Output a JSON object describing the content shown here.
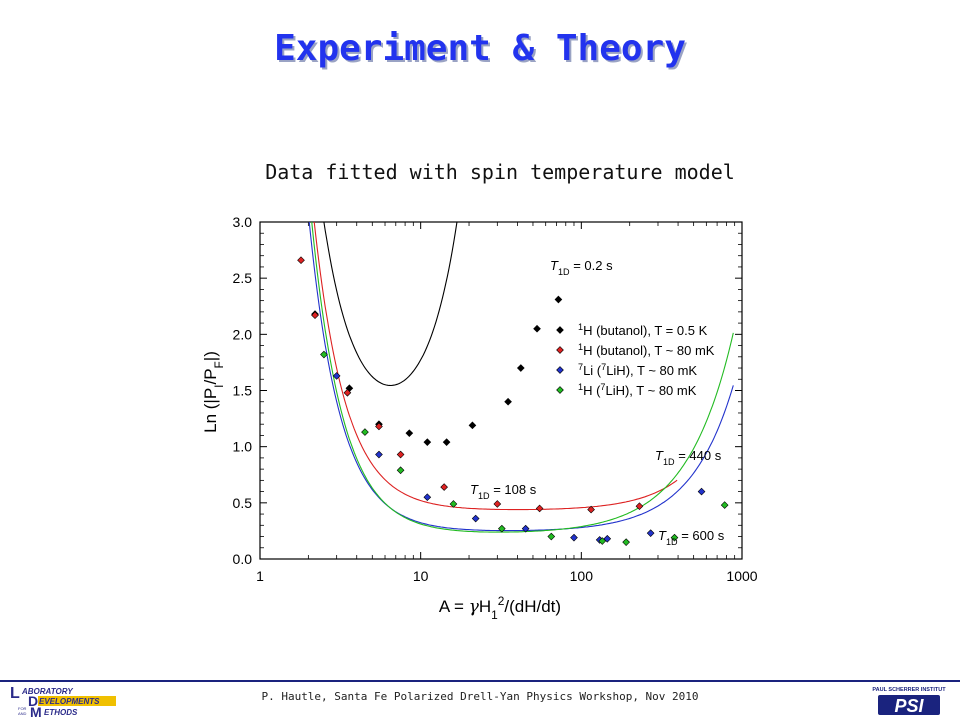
{
  "slide": {
    "title": "Experiment & Theory",
    "subtitle": "Data fitted with spin temperature model",
    "footer": "P. Hautle, Santa Fe Polarized Drell-Yan Physics Workshop, Nov 2010",
    "logo_left_text": [
      "ABORATORY",
      "EVELOPMENTS",
      "FOR",
      "AND",
      "ETHODS"
    ],
    "logo_left_initials": [
      "L",
      "D",
      "M"
    ],
    "logo_right_text": "PAUL SCHERRER INSTITUT",
    "logo_right_mark": "PSI"
  },
  "chart_data": {
    "type": "scatter",
    "xscale": "log",
    "xlim": [
      1,
      1000
    ],
    "ylim": [
      0.0,
      3.0
    ],
    "xticks": [
      1,
      10,
      100,
      1000
    ],
    "xtick_labels": [
      "1",
      "10",
      "100",
      "1000"
    ],
    "yticks": [
      0.0,
      0.5,
      1.0,
      1.5,
      2.0,
      2.5,
      3.0
    ],
    "ytick_labels": [
      "0.0",
      "0.5",
      "1.0",
      "1.5",
      "2.0",
      "2.5",
      "3.0"
    ],
    "xlabel_parts": [
      "A = ",
      "γ",
      "H",
      "1",
      "2",
      "/(dH/dt)"
    ],
    "ylabel_parts": [
      "Ln (|P",
      "I",
      "/P",
      "F",
      "|)"
    ],
    "legend_position": "right",
    "series": [
      {
        "name_parts": [
          "1",
          "H (butanol),  T = 0.5 K"
        ],
        "color": "#000000",
        "x": [
          2.2,
          3.6,
          5.5,
          8.5,
          11,
          14.5,
          21,
          35,
          42,
          53,
          72
        ],
        "y": [
          2.18,
          1.52,
          1.2,
          1.12,
          1.04,
          1.04,
          1.19,
          1.4,
          1.7,
          2.05,
          2.31
        ],
        "fit_label_parts": [
          "T",
          "1D",
          " = 0.2 s"
        ],
        "fit": {
          "a": 1.08,
          "b": 0.06,
          "c": 0.9,
          "x0": 12,
          "k": 2.2
        }
      },
      {
        "name_parts": [
          "1",
          "H (butanol),  T ~ 80 mK"
        ],
        "color": "#dd2222",
        "x": [
          1.8,
          2.2,
          3.5,
          5.5,
          7.5,
          14,
          30,
          55,
          115,
          230
        ],
        "y": [
          2.66,
          2.17,
          1.48,
          1.18,
          0.93,
          0.64,
          0.49,
          0.45,
          0.44,
          0.47
        ],
        "fit_label_parts": [
          "T",
          "1D",
          " = 108 s"
        ],
        "fit": {
          "a": 0.43,
          "b": 0.06,
          "c": 0.018,
          "x0": 80,
          "k": 1.7
        }
      },
      {
        "name_parts": [
          "7",
          "Li (",
          "7",
          "LiH),  T ~ 80 mK"
        ],
        "color": "#2233cc",
        "x": [
          3,
          5.5,
          11,
          22,
          45,
          90,
          130,
          145,
          270,
          560
        ],
        "y": [
          1.63,
          0.93,
          0.55,
          0.36,
          0.27,
          0.19,
          0.17,
          0.18,
          0.23,
          0.6
        ],
        "fit_label_parts": [
          "T",
          "1D",
          " = 440 s"
        ],
        "fit": {
          "a": 0.24,
          "b": 0.055,
          "c": 0.04,
          "x0": 100,
          "k": 1.6
        }
      },
      {
        "name_parts": [
          "1",
          "H (",
          "7",
          "LiH),  T ~ 80 mK"
        ],
        "color": "#22bb22",
        "x": [
          2.5,
          4.5,
          7.5,
          16,
          32,
          65,
          135,
          190,
          380,
          780
        ],
        "y": [
          1.82,
          1.13,
          0.79,
          0.49,
          0.27,
          0.2,
          0.16,
          0.15,
          0.19,
          0.48
        ],
        "fit_label_parts": [
          "T",
          "1D",
          " = 600 s"
        ],
        "fit": {
          "a": 0.22,
          "b": 0.06,
          "c": 0.04,
          "x0": 70,
          "k": 1.5
        }
      }
    ]
  }
}
